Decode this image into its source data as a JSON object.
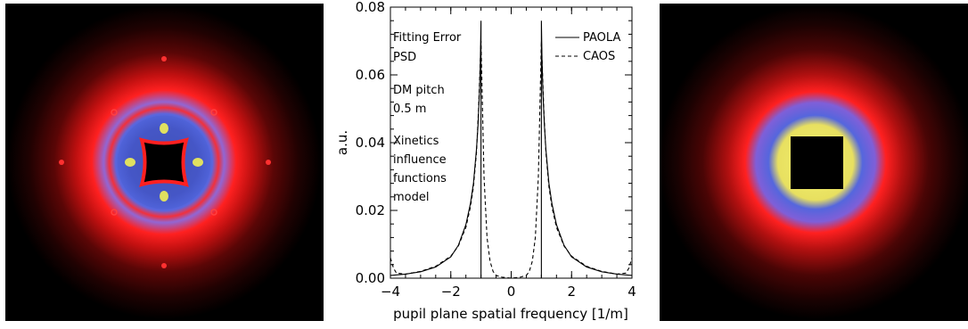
{
  "chart_data": {
    "type": "line",
    "xlabel": "pupil plane spatial frequency [1/m]",
    "ylabel": "a.u.",
    "xlim": [
      -4,
      4
    ],
    "ylim": [
      0,
      0.08
    ],
    "x_ticks": [
      -4,
      -2,
      0,
      2,
      4
    ],
    "x_tick_labels": [
      "−4",
      "−2",
      "0",
      "2",
      "4"
    ],
    "y_ticks": [
      0.0,
      0.02,
      0.04,
      0.06,
      0.08
    ],
    "y_tick_labels": [
      "0.00",
      "0.02",
      "0.04",
      "0.06",
      "0.08"
    ],
    "annotations": [
      "Fitting Error",
      "PSD",
      "DM pitch",
      "0.5 m",
      "Xinetics",
      "influence",
      "functions",
      "model"
    ],
    "legend_position": "top-right",
    "series": [
      {
        "name": "PAOLA",
        "style": "solid",
        "x": [
          -4.0,
          -3.5,
          -3.0,
          -2.5,
          -2.0,
          -1.75,
          -1.5,
          -1.35,
          -1.25,
          -1.15,
          -1.1,
          -1.05,
          -1.02,
          -1.0,
          1.0,
          1.02,
          1.05,
          1.1,
          1.15,
          1.25,
          1.35,
          1.5,
          1.75,
          2.0,
          2.5,
          3.0,
          3.5,
          4.0
        ],
        "y": [
          0.0008,
          0.0012,
          0.0019,
          0.0033,
          0.0063,
          0.0097,
          0.0158,
          0.022,
          0.028,
          0.038,
          0.045,
          0.055,
          0.065,
          0.076,
          0.076,
          0.065,
          0.055,
          0.045,
          0.038,
          0.028,
          0.022,
          0.0158,
          0.0097,
          0.0063,
          0.0033,
          0.0019,
          0.0012,
          0.0008
        ]
      },
      {
        "name": "CAOS",
        "style": "dashed",
        "x": [
          -4.0,
          -3.9,
          -3.8,
          -3.5,
          -3.0,
          -2.5,
          -2.0,
          -1.75,
          -1.5,
          -1.35,
          -1.25,
          -1.15,
          -1.08,
          -1.0,
          -0.95,
          -0.9,
          -0.8,
          -0.7,
          -0.6,
          -0.5,
          -0.3,
          0.0,
          0.3,
          0.5,
          0.6,
          0.7,
          0.8,
          0.9,
          0.95,
          1.0,
          1.08,
          1.15,
          1.25,
          1.35,
          1.5,
          1.75,
          2.0,
          2.5,
          3.0,
          3.5,
          3.8,
          3.9,
          4.0
        ],
        "y": [
          0.006,
          0.003,
          0.0015,
          0.0012,
          0.002,
          0.0035,
          0.0065,
          0.0095,
          0.015,
          0.021,
          0.027,
          0.037,
          0.05,
          0.07,
          0.05,
          0.03,
          0.012,
          0.005,
          0.002,
          0.0008,
          0.0003,
          0.0,
          0.0003,
          0.0008,
          0.002,
          0.005,
          0.012,
          0.03,
          0.05,
          0.07,
          0.05,
          0.037,
          0.027,
          0.021,
          0.015,
          0.0095,
          0.0065,
          0.0035,
          0.002,
          0.0012,
          0.0015,
          0.003,
          0.006
        ]
      }
    ]
  },
  "colors": {
    "panel_background": "#000000",
    "ring_red": "#ff1a1a",
    "ring_blue": "#5566dd",
    "ring_yellow": "#e8e060",
    "plot_ink": "#000000"
  },
  "left_image": {
    "kind": "2d-psd-map",
    "core": "cross-shaped dark centre"
  },
  "right_image": {
    "kind": "2d-psd-map",
    "core": "black square centre"
  }
}
